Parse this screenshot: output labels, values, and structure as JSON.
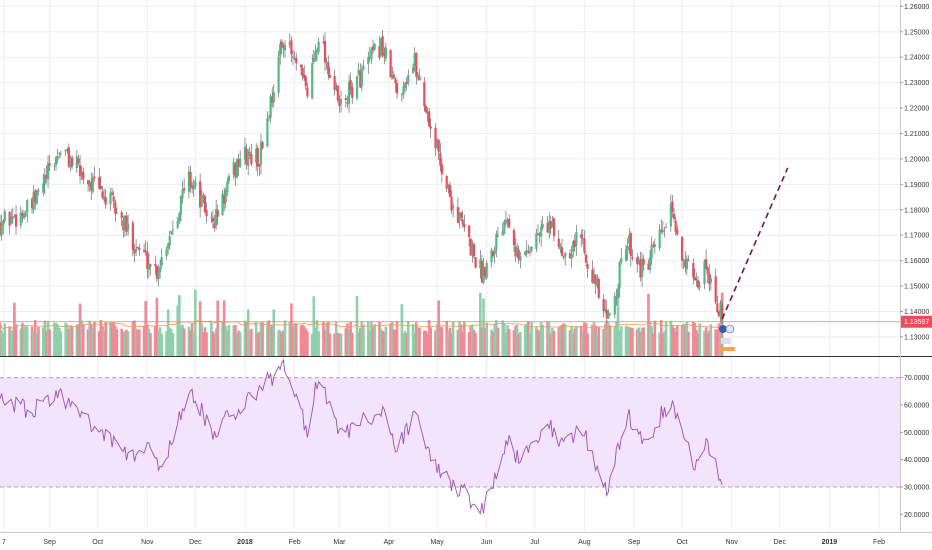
{
  "chart_data": {
    "type": "candlestick",
    "instrument_scale": "price",
    "x_ticks": [
      "7",
      "Sep",
      "Oct",
      "Nov",
      "Dec",
      "2018",
      "Feb",
      "Mar",
      "Apr",
      "May",
      "Jun",
      "Jul",
      "Aug",
      "Sep",
      "Oct",
      "Nov",
      "Dec",
      "2019",
      "Feb"
    ],
    "price_axis": {
      "ylim": [
        1.1225,
        1.2625
      ],
      "ticks": [
        "1.26000",
        "1.25000",
        "1.24000",
        "1.23000",
        "1.22000",
        "1.21000",
        "1.20000",
        "1.19000",
        "1.18000",
        "1.17000",
        "1.16000",
        "1.15000",
        "1.14000",
        "1.13000"
      ]
    },
    "current_price": "1.13597",
    "price_anchors": [
      {
        "date": "2017-08-01",
        "price": 1.175
      },
      {
        "date": "2017-08-20",
        "price": 1.18
      },
      {
        "date": "2017-09-08",
        "price": 1.204
      },
      {
        "date": "2017-09-20",
        "price": 1.195
      },
      {
        "date": "2017-10-10",
        "price": 1.182
      },
      {
        "date": "2017-10-26",
        "price": 1.165
      },
      {
        "date": "2017-11-07",
        "price": 1.156
      },
      {
        "date": "2017-11-27",
        "price": 1.193
      },
      {
        "date": "2017-12-12",
        "price": 1.174
      },
      {
        "date": "2017-12-29",
        "price": 1.201
      },
      {
        "date": "2018-01-10",
        "price": 1.2
      },
      {
        "date": "2018-01-25",
        "price": 1.248
      },
      {
        "date": "2018-02-09",
        "price": 1.226
      },
      {
        "date": "2018-02-16",
        "price": 1.25
      },
      {
        "date": "2018-03-01",
        "price": 1.22
      },
      {
        "date": "2018-03-27",
        "price": 1.245
      },
      {
        "date": "2018-04-06",
        "price": 1.226
      },
      {
        "date": "2018-04-17",
        "price": 1.238
      },
      {
        "date": "2018-04-24",
        "price": 1.22
      },
      {
        "date": "2018-05-09",
        "price": 1.185
      },
      {
        "date": "2018-05-29",
        "price": 1.155
      },
      {
        "date": "2018-06-14",
        "price": 1.18
      },
      {
        "date": "2018-06-21",
        "price": 1.16
      },
      {
        "date": "2018-07-09",
        "price": 1.175
      },
      {
        "date": "2018-07-19",
        "price": 1.163
      },
      {
        "date": "2018-07-30",
        "price": 1.17
      },
      {
        "date": "2018-08-15",
        "price": 1.135
      },
      {
        "date": "2018-08-28",
        "price": 1.168
      },
      {
        "date": "2018-09-07",
        "price": 1.155
      },
      {
        "date": "2018-09-24",
        "price": 1.178
      },
      {
        "date": "2018-10-09",
        "price": 1.148
      },
      {
        "date": "2018-10-16",
        "price": 1.159
      },
      {
        "date": "2018-10-26",
        "price": 1.137
      }
    ],
    "projection": {
      "from": {
        "date": "2018-10-26",
        "price": 1.137
      },
      "to": {
        "date": "2018-12-06",
        "price": 1.1965
      },
      "style": "dashed"
    },
    "rsi": {
      "ylim": [
        15,
        75
      ],
      "ticks": [
        "70.0000",
        "60.0000",
        "50.0000",
        "40.0000",
        "30.0000",
        "20.0000"
      ],
      "band": [
        30,
        70
      ],
      "anchors": [
        {
          "date": "2017-08-01",
          "value": 62
        },
        {
          "date": "2017-08-20",
          "value": 58
        },
        {
          "date": "2017-09-08",
          "value": 63
        },
        {
          "date": "2017-10-06",
          "value": 48
        },
        {
          "date": "2017-10-21",
          "value": 41
        },
        {
          "date": "2017-11-05",
          "value": 44
        },
        {
          "date": "2017-11-10",
          "value": 36
        },
        {
          "date": "2017-11-27",
          "value": 66
        },
        {
          "date": "2017-12-12",
          "value": 50
        },
        {
          "date": "2017-12-25",
          "value": 57
        },
        {
          "date": "2018-01-25",
          "value": 74
        },
        {
          "date": "2018-02-09",
          "value": 50
        },
        {
          "date": "2018-02-16",
          "value": 72
        },
        {
          "date": "2018-03-01",
          "value": 48
        },
        {
          "date": "2018-03-27",
          "value": 58
        },
        {
          "date": "2018-04-06",
          "value": 44
        },
        {
          "date": "2018-04-17",
          "value": 56
        },
        {
          "date": "2018-05-01",
          "value": 36
        },
        {
          "date": "2018-05-12",
          "value": 31
        },
        {
          "date": "2018-05-29",
          "value": 21
        },
        {
          "date": "2018-06-14",
          "value": 48
        },
        {
          "date": "2018-06-21",
          "value": 40
        },
        {
          "date": "2018-07-09",
          "value": 54
        },
        {
          "date": "2018-07-19",
          "value": 45
        },
        {
          "date": "2018-07-30",
          "value": 52
        },
        {
          "date": "2018-08-15",
          "value": 28
        },
        {
          "date": "2018-08-28",
          "value": 56
        },
        {
          "date": "2018-09-07",
          "value": 46
        },
        {
          "date": "2018-09-24",
          "value": 62
        },
        {
          "date": "2018-10-09",
          "value": 36
        },
        {
          "date": "2018-10-16",
          "value": 47
        },
        {
          "date": "2018-10-26",
          "value": 33
        }
      ]
    }
  },
  "colors": {
    "up": "#53b987",
    "down": "#eb4d5c",
    "volume_up": "#8fcfab",
    "volume_down": "#f08a94",
    "volume_ma": "#f39c4a",
    "rsi_line": "#9c4fb2",
    "rsi_band": "#f1e4fb",
    "price_line": "#f07a85",
    "price_badge": "#eb4d5c",
    "projection": "#7a1a2a",
    "grid": "#eeeeee"
  }
}
